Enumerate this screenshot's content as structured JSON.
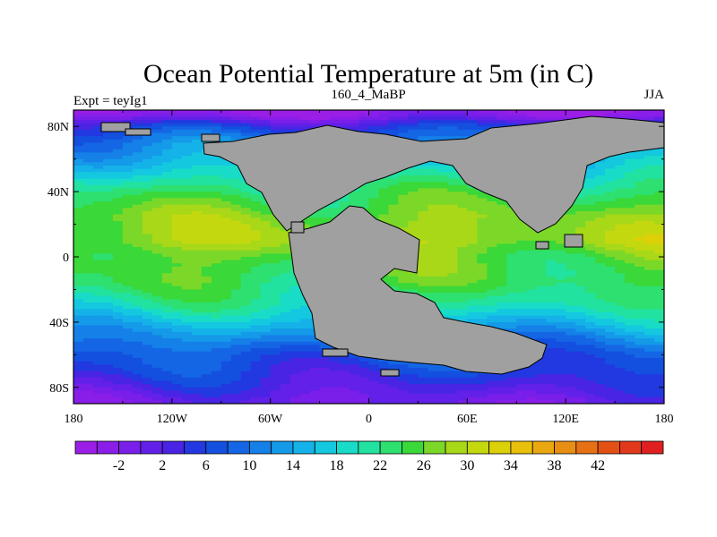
{
  "chart_data": {
    "type": "heatmap",
    "title": "Ocean Potential Temperature at 5m (in C)",
    "left_string": "Expt = teyIg1",
    "center_string": "160_4_MaBP",
    "right_string": "JJA",
    "x_ticks": [
      "180",
      "120W",
      "60W",
      "0",
      "60E",
      "120E",
      "180"
    ],
    "x_tick_values": [
      -180,
      -120,
      -60,
      0,
      60,
      120,
      180
    ],
    "y_ticks": [
      "80N",
      "40N",
      "0",
      "40S",
      "80S"
    ],
    "y_tick_values": [
      80,
      40,
      0,
      -40,
      -80
    ],
    "xlim": [
      -180,
      180
    ],
    "ylim": [
      -90,
      90
    ],
    "colorbar": {
      "labels": [
        "-2",
        "2",
        "6",
        "10",
        "14",
        "18",
        "22",
        "26",
        "30",
        "34",
        "38",
        "42"
      ],
      "label_values": [
        -2,
        2,
        6,
        10,
        14,
        18,
        22,
        26,
        30,
        34,
        38,
        42
      ],
      "level_min": -6,
      "level_step": 2,
      "colors": [
        "#9b1ee6",
        "#8a1ee8",
        "#7a1eea",
        "#6220e8",
        "#4a24e4",
        "#2238e0",
        "#1450e0",
        "#1466e4",
        "#1480e8",
        "#149ae8",
        "#14b2e8",
        "#14c8e0",
        "#18dcc8",
        "#22e2a0",
        "#2ee070",
        "#3ad838",
        "#7cd828",
        "#a8d818",
        "#c4d810",
        "#dcd008",
        "#e8c00c",
        "#eaa810",
        "#e88e14",
        "#e67014",
        "#e45014",
        "#e2381c",
        "#e02020"
      ]
    },
    "land_color": "#a0a0a0",
    "temperature_pattern": [
      {
        "lat": 88,
        "value": -4
      },
      {
        "lat": 80,
        "value": 5
      },
      {
        "lat": 70,
        "value": 11
      },
      {
        "lat": 55,
        "value": 17
      },
      {
        "lat": 40,
        "value": 23
      },
      {
        "lat": 25,
        "value": 27
      },
      {
        "lat": 10,
        "value": 29
      },
      {
        "lat": 0,
        "value": 26
      },
      {
        "lat": -15,
        "value": 24
      },
      {
        "lat": -30,
        "value": 20
      },
      {
        "lat": -45,
        "value": 14
      },
      {
        "lat": -60,
        "value": 8
      },
      {
        "lat": -75,
        "value": 4
      },
      {
        "lat": -88,
        "value": 0
      }
    ]
  }
}
